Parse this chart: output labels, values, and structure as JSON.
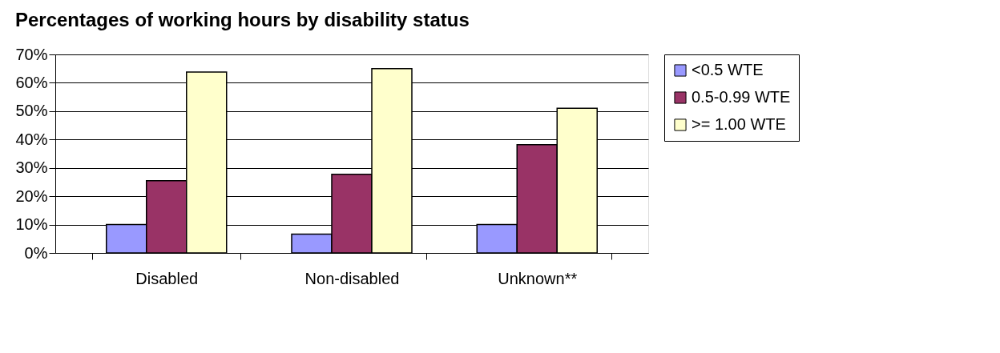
{
  "chart_data": {
    "type": "bar",
    "title": "Percentages of working hours by disability status",
    "categories": [
      "Disabled",
      "Non-disabled",
      "Unknown**"
    ],
    "series": [
      {
        "name": "<0.5 WTE",
        "color": "#9999ff",
        "values": [
          10,
          6.6,
          10
        ]
      },
      {
        "name": "0.5-0.99 WTE",
        "color": "#993366",
        "values": [
          25.5,
          27.7,
          38.2
        ]
      },
      {
        "name": ">= 1.00 WTE",
        "color": "#ffffcc",
        "values": [
          63.8,
          65,
          51
        ]
      }
    ],
    "ylim": [
      0,
      70
    ],
    "yticks": [
      {
        "value": 0,
        "label": "0%"
      },
      {
        "value": 10,
        "label": "10%"
      },
      {
        "value": 20,
        "label": "20%"
      },
      {
        "value": 30,
        "label": "30%"
      },
      {
        "value": 40,
        "label": "40%"
      },
      {
        "value": 50,
        "label": "50%"
      },
      {
        "value": 60,
        "label": "60%"
      },
      {
        "value": 70,
        "label": "70%"
      }
    ],
    "grid": "y",
    "legend": "right"
  }
}
